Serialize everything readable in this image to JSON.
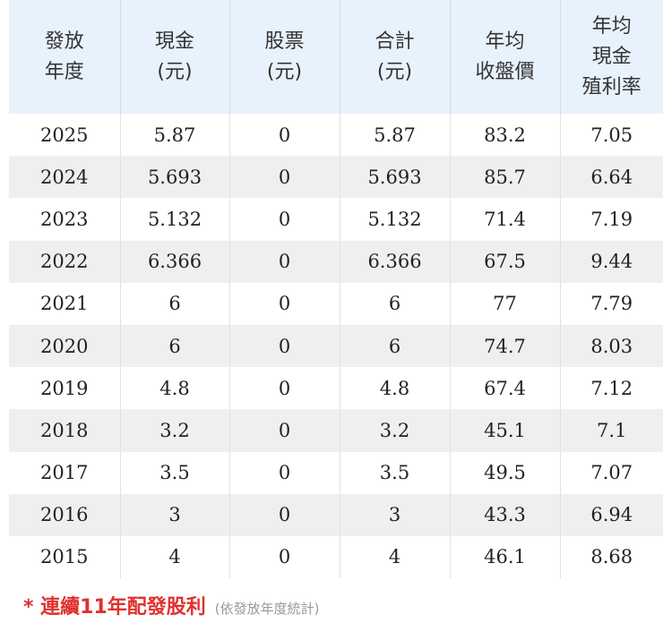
{
  "table": {
    "headers": [
      "發放\n年度",
      "現金\n(元)",
      "股票\n(元)",
      "合計\n(元)",
      "年均\n收盤價",
      "年均\n現金\n殖利率"
    ],
    "rows": [
      [
        "2025",
        "5.87",
        "0",
        "5.87",
        "83.2",
        "7.05"
      ],
      [
        "2024",
        "5.693",
        "0",
        "5.693",
        "85.7",
        "6.64"
      ],
      [
        "2023",
        "5.132",
        "0",
        "5.132",
        "71.4",
        "7.19"
      ],
      [
        "2022",
        "6.366",
        "0",
        "6.366",
        "67.5",
        "9.44"
      ],
      [
        "2021",
        "6",
        "0",
        "6",
        "77",
        "7.79"
      ],
      [
        "2020",
        "6",
        "0",
        "6",
        "74.7",
        "8.03"
      ],
      [
        "2019",
        "4.8",
        "0",
        "4.8",
        "67.4",
        "7.12"
      ],
      [
        "2018",
        "3.2",
        "0",
        "3.2",
        "45.1",
        "7.1"
      ],
      [
        "2017",
        "3.5",
        "0",
        "3.5",
        "49.5",
        "7.07"
      ],
      [
        "2016",
        "3",
        "0",
        "3",
        "43.3",
        "6.94"
      ],
      [
        "2015",
        "4",
        "0",
        "4",
        "46.1",
        "8.68"
      ]
    ]
  },
  "footer": {
    "note": "* 連續11年配發股利",
    "sub_note": "(依發放年度統計)"
  },
  "colors": {
    "header_bg": "#e8f2fd",
    "stripe_bg": "#efefef",
    "note_red": "#e0312f",
    "sub_note_gray": "#999999"
  }
}
